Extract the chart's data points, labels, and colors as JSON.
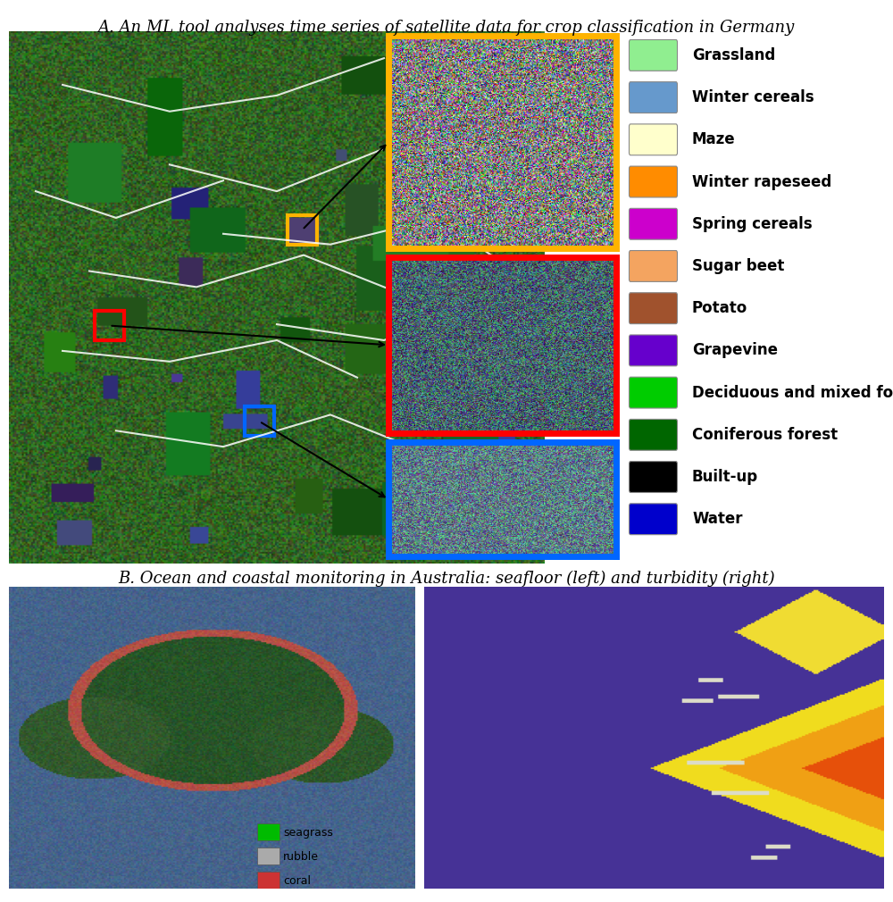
{
  "title_a": "A. An ML tool analyses time series of satellite data for crop classification in Germany",
  "title_b": "B. Ocean and coastal monitoring in Australia: seafloor (left) and turbidity (right)",
  "legend_items": [
    {
      "label": "Grassland",
      "color": "#90EE90"
    },
    {
      "label": "Winter cereals",
      "color": "#6699CC"
    },
    {
      "label": "Maze",
      "color": "#FFFFCC"
    },
    {
      "label": "Winter rapeseed",
      "color": "#FF8C00"
    },
    {
      "label": "Spring cereals",
      "color": "#CC00CC"
    },
    {
      "label": "Sugar beet",
      "color": "#F4A460"
    },
    {
      "label": "Potato",
      "color": "#A0522D"
    },
    {
      "label": "Grapevine",
      "color": "#6600CC"
    },
    {
      "label": "Deciduous and mixed forest",
      "color": "#00CC00"
    },
    {
      "label": "Coniferous forest",
      "color": "#006600"
    },
    {
      "label": "Built-up",
      "color": "#000000"
    },
    {
      "label": "Water",
      "color": "#0000CC"
    }
  ],
  "seafloor_legend": [
    {
      "label": "seagrass",
      "color": "#00BB00"
    },
    {
      "label": "rubble",
      "color": "#AAAAAA"
    },
    {
      "label": "coral",
      "color": "#CC3333"
    }
  ],
  "box_colors": {
    "yellow": "#FFB300",
    "red": "#FF0000",
    "blue": "#0066FF"
  },
  "bg_color": "#FFFFFF",
  "title_fontsize": 13,
  "legend_fontsize": 12
}
